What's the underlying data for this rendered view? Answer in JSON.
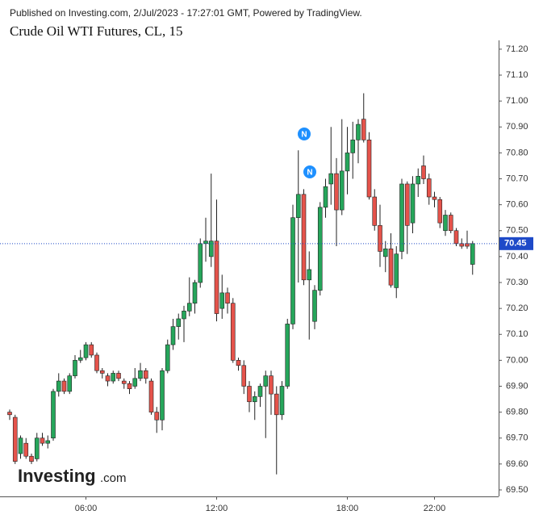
{
  "header": "Published on Investing.com, 2/Jul/2023 - 17:27:01 GMT, Powered by TradingView.",
  "logo": "Investing",
  "logo_suffix": ".com",
  "events": [
    "N",
    "N"
  ],
  "chart_data": {
    "type": "candlestick",
    "title": "Crude Oil WTI Futures, CL, 15",
    "categories": [
      null,
      null,
      null,
      null,
      null,
      null,
      null,
      null,
      null,
      null,
      null,
      null,
      null,
      null,
      "06:00",
      null,
      null,
      null,
      null,
      null,
      null,
      null,
      null,
      null,
      null,
      null,
      null,
      null,
      null,
      null,
      null,
      null,
      null,
      null,
      null,
      null,
      null,
      null,
      "12:00",
      null,
      null,
      null,
      null,
      null,
      null,
      null,
      null,
      null,
      null,
      null,
      null,
      null,
      null,
      null,
      null,
      null,
      null,
      null,
      null,
      null,
      null,
      null,
      "18:00",
      null,
      null,
      null,
      null,
      null,
      null,
      null,
      null,
      null,
      null,
      null,
      null,
      null,
      null,
      null,
      "22:00",
      null,
      null,
      null,
      null,
      null,
      null,
      null
    ],
    "open": [
      69.8,
      69.78,
      69.64,
      69.68,
      69.63,
      69.62,
      69.7,
      69.68,
      69.7,
      69.88,
      69.92,
      69.88,
      69.94,
      70.0,
      70.01,
      70.06,
      70.02,
      69.96,
      69.94,
      69.92,
      69.95,
      69.92,
      69.91,
      69.9,
      69.93,
      69.96,
      69.92,
      69.8,
      69.77,
      69.96,
      70.06,
      70.13,
      70.16,
      70.19,
      70.22,
      70.3,
      70.45,
      70.4,
      70.46,
      70.2,
      70.26,
      70.22,
      70.0,
      69.98,
      69.9,
      69.84,
      69.86,
      69.9,
      69.94,
      69.87,
      69.79,
      69.9,
      70.14,
      70.55,
      70.64,
      70.31,
      70.15,
      70.27,
      70.59,
      70.68,
      70.72,
      70.58,
      70.73,
      70.8,
      70.85,
      70.93,
      70.85,
      70.63,
      70.52,
      70.4,
      70.43,
      70.28,
      70.42,
      70.68,
      70.53,
      70.68,
      70.75,
      70.7,
      70.63,
      70.62,
      70.5,
      70.56,
      70.5,
      70.45,
      70.45,
      70.37
    ],
    "high": [
      69.81,
      69.79,
      69.71,
      69.7,
      69.64,
      69.72,
      69.72,
      69.71,
      69.89,
      69.95,
      69.93,
      69.95,
      70.02,
      70.04,
      70.07,
      70.07,
      70.03,
      69.97,
      69.95,
      69.96,
      69.96,
      69.93,
      69.92,
      69.97,
      69.99,
      69.97,
      69.93,
      69.82,
      69.97,
      70.08,
      70.16,
      70.18,
      70.21,
      70.32,
      70.31,
      70.47,
      70.55,
      70.72,
      70.62,
      70.33,
      70.28,
      70.24,
      70.01,
      70.0,
      69.92,
      69.88,
      69.91,
      69.96,
      69.96,
      69.9,
      69.92,
      70.16,
      70.6,
      70.81,
      70.66,
      70.42,
      70.29,
      70.61,
      70.7,
      70.9,
      70.78,
      70.93,
      70.9,
      70.92,
      70.93,
      71.03,
      70.88,
      70.66,
      70.6,
      70.46,
      70.49,
      70.44,
      70.7,
      70.69,
      70.71,
      70.74,
      70.79,
      70.72,
      70.65,
      70.63,
      70.58,
      70.57,
      70.51,
      70.47,
      70.5,
      70.46
    ],
    "low": [
      69.77,
      69.6,
      69.62,
      69.62,
      69.6,
      69.61,
      69.67,
      69.66,
      69.69,
      69.86,
      69.87,
      69.87,
      69.93,
      69.99,
      70.0,
      70.01,
      69.95,
      69.93,
      69.9,
      69.91,
      69.92,
      69.89,
      69.87,
      69.89,
      69.92,
      69.91,
      69.79,
      69.72,
      69.73,
      69.95,
      70.04,
      70.08,
      70.07,
      70.17,
      70.18,
      70.28,
      70.38,
      70.36,
      70.15,
      70.16,
      70.18,
      69.99,
      69.96,
      69.87,
      69.8,
      69.77,
      69.82,
      69.7,
      69.79,
      69.56,
      69.77,
      69.89,
      70.12,
      70.3,
      70.29,
      70.08,
      70.12,
      70.25,
      70.55,
      70.6,
      70.44,
      70.56,
      70.64,
      70.7,
      70.76,
      70.84,
      70.62,
      70.5,
      70.36,
      70.34,
      70.28,
      70.24,
      70.39,
      70.41,
      70.49,
      70.63,
      70.68,
      70.6,
      70.59,
      70.51,
      70.48,
      70.49,
      70.44,
      70.43,
      70.43,
      70.33
    ],
    "close": [
      69.79,
      69.61,
      69.7,
      69.63,
      69.61,
      69.7,
      69.68,
      69.69,
      69.88,
      69.92,
      69.88,
      69.94,
      70.0,
      70.01,
      70.06,
      70.02,
      69.96,
      69.95,
      69.92,
      69.95,
      69.93,
      69.91,
      69.89,
      69.93,
      69.96,
      69.93,
      69.8,
      69.77,
      69.96,
      70.06,
      70.13,
      70.16,
      70.19,
      70.22,
      70.3,
      70.45,
      70.46,
      70.46,
      70.18,
      70.26,
      70.22,
      70.0,
      69.98,
      69.9,
      69.84,
      69.86,
      69.9,
      69.94,
      69.87,
      69.79,
      69.9,
      70.14,
      70.55,
      70.64,
      70.31,
      70.35,
      70.27,
      70.59,
      70.67,
      70.72,
      70.58,
      70.73,
      70.8,
      70.85,
      70.91,
      70.85,
      70.63,
      70.52,
      70.42,
      70.43,
      70.29,
      70.41,
      70.68,
      70.52,
      70.68,
      70.71,
      70.7,
      70.63,
      70.62,
      70.53,
      70.56,
      70.5,
      70.45,
      70.44,
      70.44,
      70.45
    ],
    "up_color": "#26a65b",
    "down_color": "#e5534b",
    "last_price": {
      "value": 70.45,
      "label": "70.45"
    },
    "last_price_color": "#1e4ac8",
    "ylim": [
      69.475,
      71.234
    ],
    "yticks": [
      {
        "value": 69.5,
        "label": "69.50"
      },
      {
        "value": 69.6,
        "label": "69.60"
      },
      {
        "value": 69.7,
        "label": "69.70"
      },
      {
        "value": 69.8,
        "label": "69.80"
      },
      {
        "value": 69.9,
        "label": "69.90"
      },
      {
        "value": 70.0,
        "label": "70.00"
      },
      {
        "value": 70.1,
        "label": "70.10"
      },
      {
        "value": 70.2,
        "label": "70.20"
      },
      {
        "value": 70.3,
        "label": "70.30"
      },
      {
        "value": 70.4,
        "label": "70.40"
      },
      {
        "value": 70.5,
        "label": "70.50"
      },
      {
        "value": 70.6,
        "label": "70.60"
      },
      {
        "value": 70.7,
        "label": "70.70"
      },
      {
        "value": 70.8,
        "label": "70.80"
      },
      {
        "value": 70.9,
        "label": "70.90"
      },
      {
        "value": 71.0,
        "label": "71.00"
      },
      {
        "value": 71.1,
        "label": "71.10"
      },
      {
        "value": 71.2,
        "label": "71.20"
      }
    ]
  }
}
